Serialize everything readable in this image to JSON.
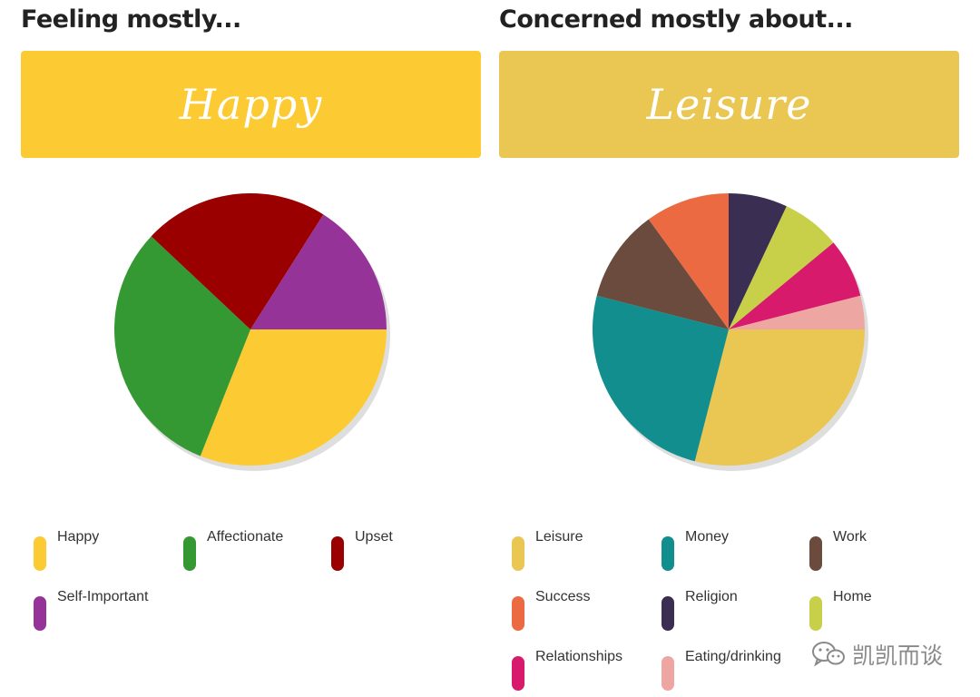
{
  "watermark": {
    "text": "凯凯而谈",
    "icon": "wechat-icon"
  },
  "panels": [
    {
      "heading": "Feeling mostly...",
      "banner_text": "Happy",
      "banner_color": "#FCCB33"
    },
    {
      "heading": "Concerned mostly about...",
      "banner_text": "Leisure",
      "banner_color": "#E9C752"
    }
  ],
  "chart_data": [
    {
      "type": "pie",
      "title": "Feeling mostly...",
      "start_direction": "3 o'clock, clockwise",
      "categories": [
        "Happy",
        "Affectionate",
        "Upset",
        "Self-Important"
      ],
      "values": [
        31,
        31,
        22,
        16
      ],
      "colors": [
        "#FCCB33",
        "#359933",
        "#9B0000",
        "#963399"
      ],
      "legend_position": "bottom"
    },
    {
      "type": "pie",
      "title": "Concerned mostly about...",
      "start_direction": "3 o'clock, clockwise",
      "categories": [
        "Leisure",
        "Money",
        "Work",
        "Success",
        "Religion",
        "Home",
        "Relationships",
        "Eating/drinking"
      ],
      "values": [
        29,
        25,
        11,
        10,
        7,
        7,
        7,
        4
      ],
      "colors": [
        "#E9C752",
        "#128E8E",
        "#6B4B3E",
        "#EC6A42",
        "#3A2E52",
        "#C8D04A",
        "#D71A6B",
        "#EDA6A1"
      ],
      "legend_position": "bottom"
    }
  ]
}
